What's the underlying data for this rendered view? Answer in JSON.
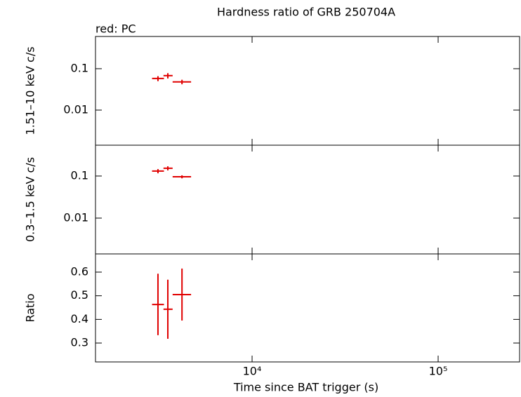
{
  "chart_data": [
    {
      "type": "scatter",
      "title": "Hardness ratio of GRB 250704A",
      "annotation": "red: PC",
      "ylabel": "1.51–10 keV c/s",
      "xlog": true,
      "ylog": true,
      "color": "#e00000",
      "xlim": [
        1440,
        274000
      ],
      "xticks": [
        {
          "value": 10000,
          "label": "10⁴"
        },
        {
          "value": 100000,
          "label": "10⁵"
        }
      ],
      "ylim": [
        0.00142,
        0.6
      ],
      "yticks": [
        0.1,
        0.01
      ],
      "x": [
        3120,
        3525,
        4200
      ],
      "xerr_minus": [
        220,
        185,
        460
      ],
      "xerr_plus": [
        240,
        215,
        500
      ],
      "values": [
        0.058,
        0.068,
        0.048
      ],
      "yerr": [
        0.008,
        0.01,
        0.006
      ]
    },
    {
      "type": "scatter",
      "ylabel": "0.3–1.5 keV c/s",
      "xlog": true,
      "ylog": true,
      "color": "#e00000",
      "xlim": [
        1440,
        274000
      ],
      "xticks": [
        {
          "value": 10000,
          "label": "10⁴"
        },
        {
          "value": 100000,
          "label": "10⁵"
        }
      ],
      "ylim": [
        0.00141,
        0.54
      ],
      "yticks": [
        0.1,
        0.01
      ],
      "x": [
        3120,
        3525,
        4200
      ],
      "xerr_minus": [
        220,
        185,
        460
      ],
      "xerr_plus": [
        240,
        215,
        500
      ],
      "values": [
        0.131,
        0.153,
        0.096
      ],
      "yerr": [
        0.015,
        0.017,
        0.008
      ]
    },
    {
      "type": "scatter",
      "ylabel": "Ratio",
      "xlabel": "Time since BAT trigger (s)",
      "xlog": true,
      "ylog": false,
      "color": "#e00000",
      "xlim": [
        1440,
        274000
      ],
      "xticks": [
        {
          "value": 10000,
          "label": "10⁴"
        },
        {
          "value": 100000,
          "label": "10⁵"
        }
      ],
      "ylim": [
        0.22,
        0.677
      ],
      "yticks": [
        0.3,
        0.4,
        0.5,
        0.6
      ],
      "x": [
        3120,
        3525,
        4200
      ],
      "xerr_minus": [
        220,
        185,
        460
      ],
      "xerr_plus": [
        240,
        215,
        500
      ],
      "values": [
        0.463,
        0.443,
        0.505
      ],
      "yerr": [
        0.13,
        0.125,
        0.11
      ]
    }
  ]
}
